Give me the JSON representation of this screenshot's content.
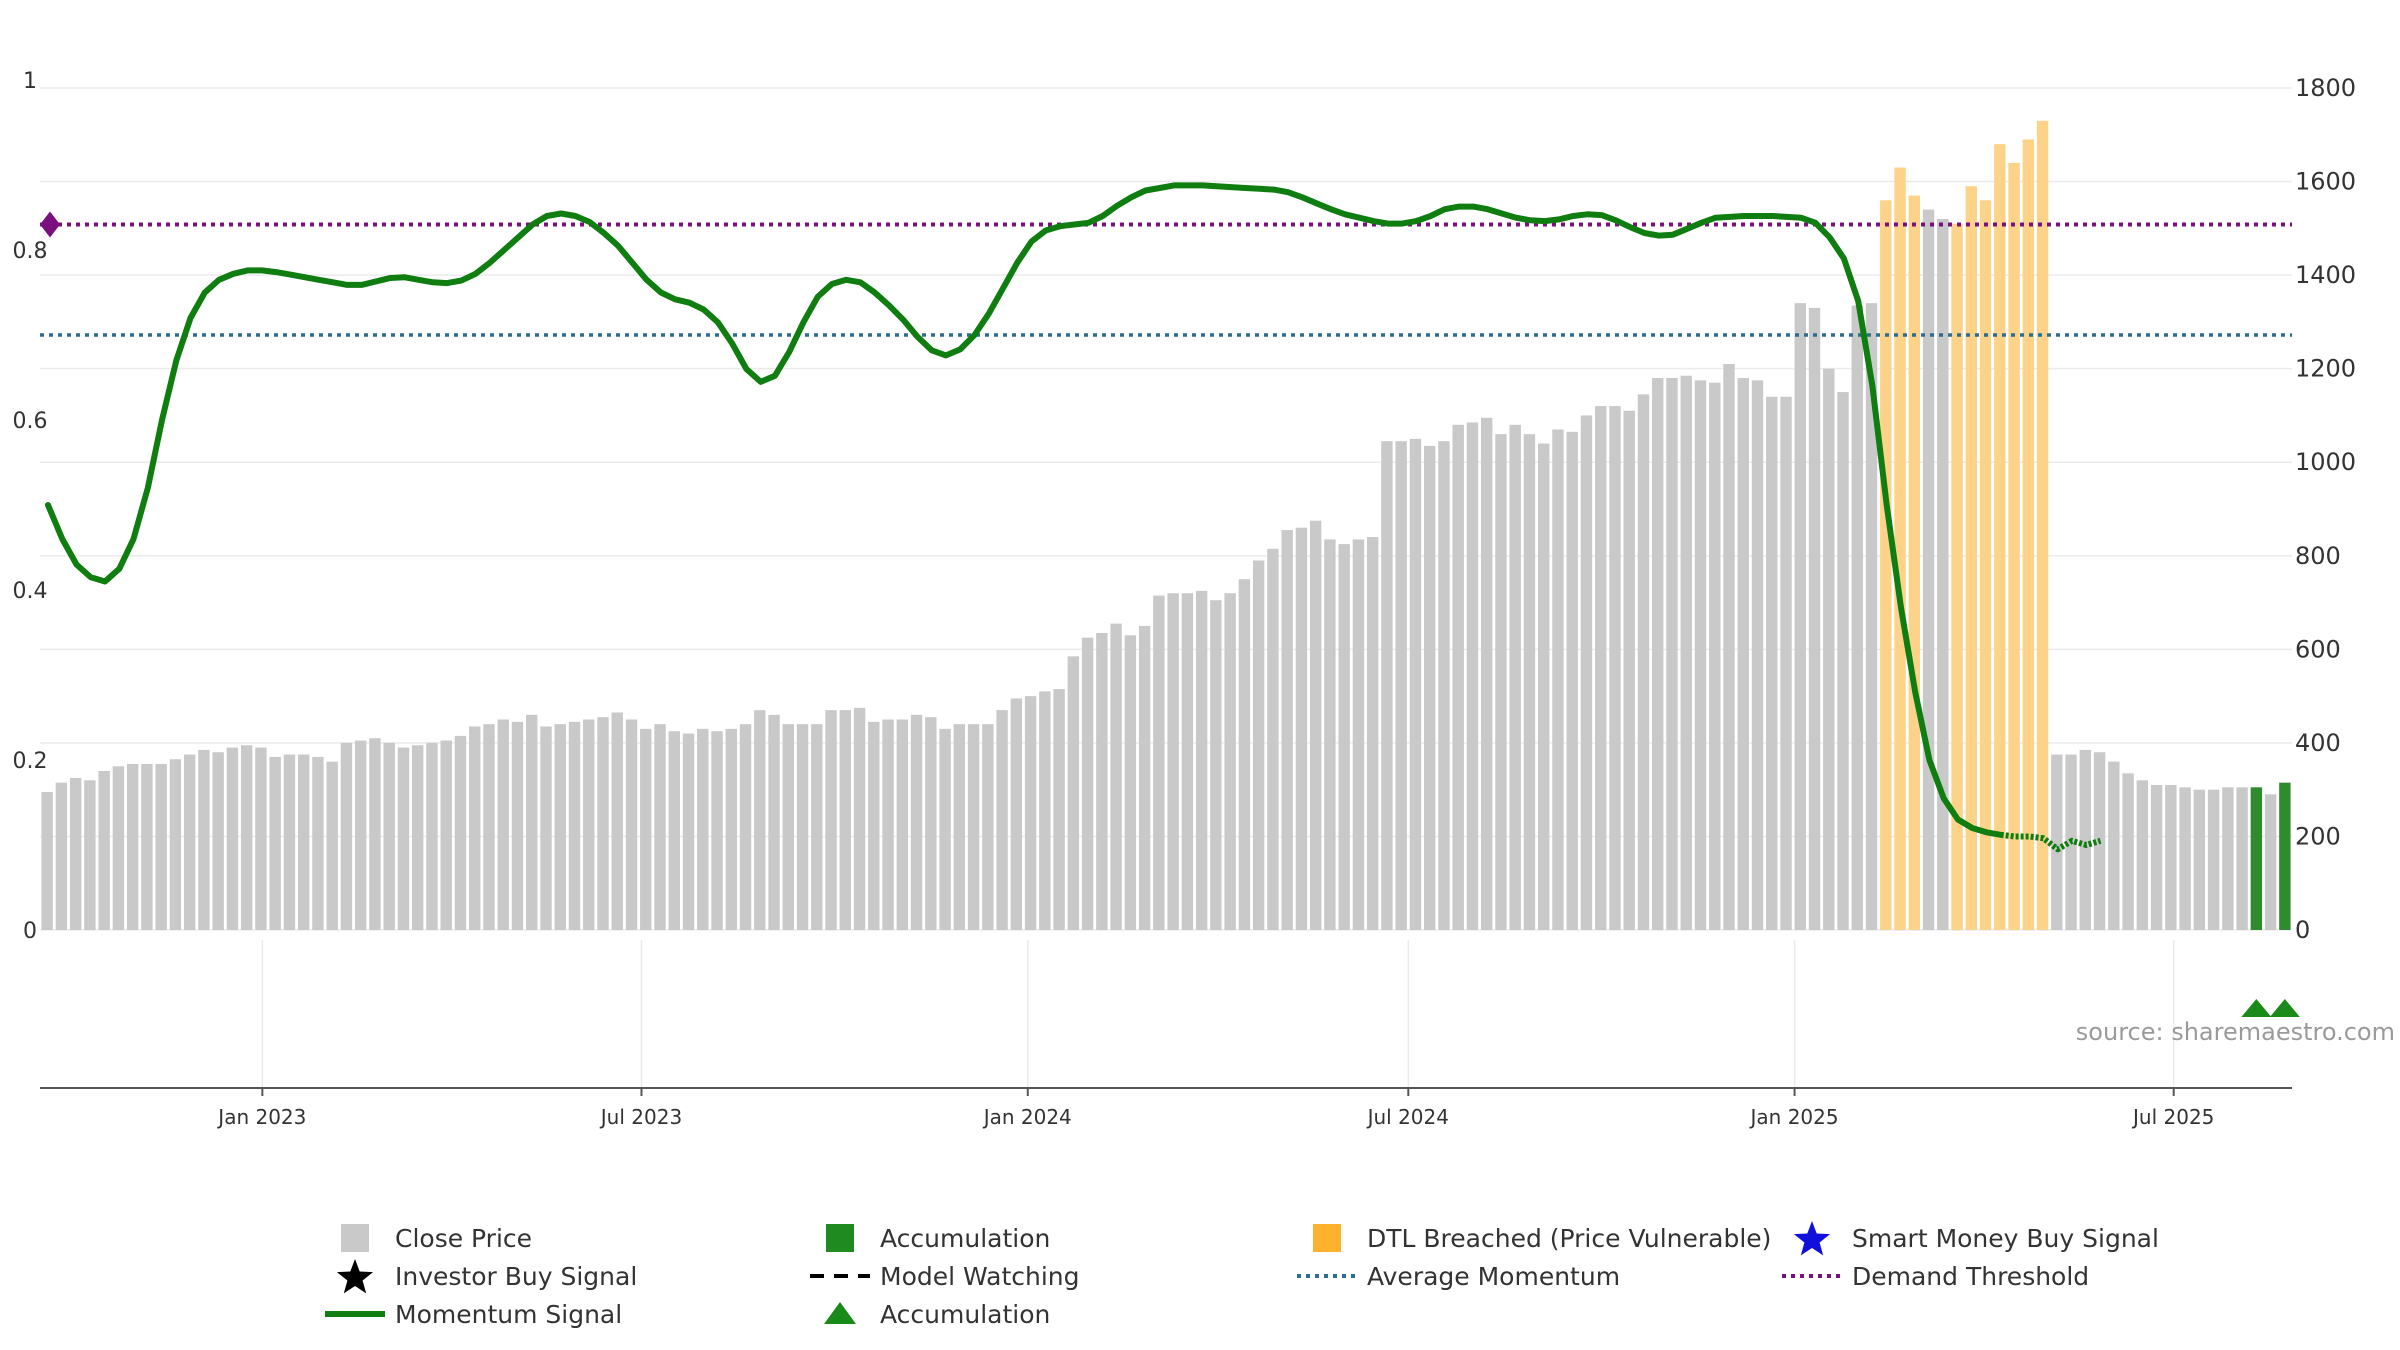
{
  "chart_data": {
    "type": "bar",
    "source_text": "source: sharemaestro.com",
    "x_ticks": [
      "Jan 2023",
      "Jul 2023",
      "Jan 2024",
      "Jul 2024",
      "Jan 2025",
      "Jul 2025"
    ],
    "x_tick_positions_week_index": [
      15.6,
      42.2,
      69.3,
      96,
      123.1,
      149.7
    ],
    "left_axis": {
      "ylim": [
        0,
        1
      ],
      "ticks": [
        0,
        0.2,
        0.4,
        0.6,
        0.8,
        1
      ],
      "tick_labels": [
        "0",
        "0.2",
        "0.4",
        "0.6",
        "0.8",
        "1"
      ]
    },
    "right_axis": {
      "ylim": [
        0,
        1800
      ],
      "ticks": [
        0,
        200,
        400,
        600,
        800,
        1000,
        1200,
        1400,
        1600,
        1800
      ],
      "tick_labels": [
        "0",
        "200",
        "400",
        "600",
        "800",
        "1000",
        "1200",
        "1400",
        "1600",
        "1800"
      ]
    },
    "demand_threshold": 0.83,
    "average_momentum": 0.7,
    "bars": {
      "values": [
        295,
        315,
        325,
        320,
        340,
        350,
        355,
        355,
        355,
        365,
        375,
        385,
        380,
        390,
        395,
        390,
        370,
        375,
        375,
        370,
        360,
        400,
        405,
        410,
        400,
        390,
        395,
        400,
        405,
        415,
        435,
        440,
        450,
        445,
        460,
        435,
        440,
        445,
        450,
        455,
        465,
        450,
        430,
        440,
        425,
        420,
        430,
        425,
        430,
        440,
        470,
        460,
        440,
        440,
        440,
        470,
        470,
        475,
        445,
        450,
        450,
        460,
        455,
        430,
        440,
        440,
        440,
        470,
        495,
        500,
        510,
        515,
        585,
        625,
        635,
        655,
        630,
        650,
        715,
        720,
        720,
        725,
        705,
        720,
        750,
        790,
        815,
        855,
        860,
        875,
        835,
        825,
        835,
        840,
        1045,
        1045,
        1050,
        1035,
        1045,
        1080,
        1085,
        1095,
        1060,
        1080,
        1060,
        1040,
        1070,
        1065,
        1100,
        1120,
        1120,
        1110,
        1145,
        1180,
        1180,
        1185,
        1175,
        1170,
        1210,
        1180,
        1175,
        1140,
        1140,
        1340,
        1330,
        1200,
        1150,
        1335,
        1340,
        1560,
        1630,
        1570,
        1540,
        1520,
        1510,
        1590,
        1560,
        1680,
        1640,
        1690,
        1730,
        375,
        375,
        385,
        380,
        360,
        335,
        320,
        310,
        310,
        305,
        300,
        300,
        305,
        305,
        305,
        290,
        315
      ],
      "highlight": [
        "g",
        "g",
        "g",
        "g",
        "g",
        "g",
        "g",
        "g",
        "g",
        "g",
        "g",
        "g",
        "g",
        "g",
        "g",
        "g",
        "g",
        "g",
        "g",
        "g",
        "g",
        "g",
        "g",
        "g",
        "g",
        "g",
        "g",
        "g",
        "g",
        "g",
        "g",
        "g",
        "g",
        "g",
        "g",
        "g",
        "g",
        "g",
        "g",
        "g",
        "g",
        "g",
        "g",
        "g",
        "g",
        "g",
        "g",
        "g",
        "g",
        "g",
        "g",
        "g",
        "g",
        "g",
        "g",
        "g",
        "g",
        "g",
        "g",
        "g",
        "g",
        "g",
        "g",
        "g",
        "g",
        "g",
        "g",
        "g",
        "g",
        "g",
        "g",
        "g",
        "g",
        "g",
        "g",
        "g",
        "g",
        "g",
        "g",
        "g",
        "g",
        "g",
        "g",
        "g",
        "g",
        "g",
        "g",
        "g",
        "g",
        "g",
        "g",
        "g",
        "g",
        "g",
        "g",
        "g",
        "g",
        "g",
        "g",
        "g",
        "g",
        "g",
        "g",
        "g",
        "g",
        "g",
        "g",
        "g",
        "g",
        "g",
        "g",
        "g",
        "g",
        "g",
        "g",
        "g",
        "g",
        "g",
        "g",
        "g",
        "g",
        "g",
        "g",
        "g",
        "g",
        "g",
        "g",
        "g",
        "g",
        "o",
        "o",
        "o",
        "g",
        "g",
        "o",
        "o",
        "o",
        "o",
        "o",
        "o",
        "o",
        "g",
        "g",
        "g",
        "g",
        "g",
        "g",
        "g",
        "g",
        "g",
        "g",
        "g",
        "g",
        "g",
        "g",
        "G",
        "g",
        "G",
        "g"
      ]
    },
    "momentum": {
      "values": [
        0.5,
        0.46,
        0.43,
        0.415,
        0.41,
        0.425,
        0.46,
        0.52,
        0.6,
        0.67,
        0.72,
        0.75,
        0.765,
        0.772,
        0.776,
        0.776,
        0.774,
        0.771,
        0.768,
        0.765,
        0.762,
        0.759,
        0.759,
        0.763,
        0.767,
        0.768,
        0.765,
        0.762,
        0.761,
        0.764,
        0.772,
        0.785,
        0.8,
        0.815,
        0.83,
        0.84,
        0.843,
        0.84,
        0.833,
        0.82,
        0.805,
        0.785,
        0.765,
        0.75,
        0.742,
        0.738,
        0.73,
        0.715,
        0.69,
        0.66,
        0.645,
        0.652,
        0.68,
        0.715,
        0.745,
        0.76,
        0.765,
        0.762,
        0.75,
        0.735,
        0.718,
        0.698,
        0.682,
        0.676,
        0.683,
        0.7,
        0.725,
        0.755,
        0.785,
        0.81,
        0.823,
        0.828,
        0.83,
        0.832,
        0.84,
        0.852,
        0.862,
        0.87,
        0.873,
        0.876,
        0.876,
        0.876,
        0.875,
        0.874,
        0.873,
        0.872,
        0.871,
        0.868,
        0.862,
        0.855,
        0.848,
        0.842,
        0.838,
        0.834,
        0.831,
        0.831,
        0.834,
        0.84,
        0.848,
        0.851,
        0.851,
        0.848,
        0.843,
        0.838,
        0.835,
        0.834,
        0.836,
        0.84,
        0.842,
        0.841,
        0.835,
        0.827,
        0.82,
        0.817,
        0.818,
        0.825,
        0.832,
        0.838,
        0.839,
        0.84,
        0.84,
        0.84,
        0.839,
        0.838,
        0.832,
        0.815,
        0.79,
        0.74,
        0.64,
        0.5,
        0.38,
        0.28,
        0.2,
        0.155,
        0.13,
        0.12,
        0.115,
        0.112,
        0.11,
        0.11,
        0.108,
        0.095,
        0.105,
        0.1,
        0.105
      ],
      "x_start_week_index": 0.5,
      "x_step": 1,
      "dashed_tail_from_index": 137
    },
    "accumulation_triangles_week_index": [
      155.5,
      157.5
    ],
    "demand_marker_week_index": 0,
    "legend": [
      {
        "label": "Close Price",
        "symbol": "gray-square"
      },
      {
        "label": "Accumulation",
        "symbol": "green-square"
      },
      {
        "label": "DTL Breached (Price Vulnerable)",
        "symbol": "orange-square"
      },
      {
        "label": "Smart Money Buy Signal",
        "symbol": "blue-star"
      },
      {
        "label": "Investor Buy Signal",
        "symbol": "black-star"
      },
      {
        "label": "Model Watching",
        "symbol": "black-dash"
      },
      {
        "label": "Average Momentum",
        "symbol": "blue-dotted"
      },
      {
        "label": "Demand Threshold",
        "symbol": "purple-dotted"
      },
      {
        "label": "Momentum Signal",
        "symbol": "green-line"
      },
      {
        "label": "Accumulation",
        "symbol": "green-triangle"
      }
    ],
    "colors": {
      "bar_gray": "#c9c9c9",
      "bar_orange": "#fdd38a",
      "bar_green": "#2e8b2e",
      "momentum": "#0f7d0f",
      "average": "#2d6e8e",
      "threshold": "#7a1080",
      "grid": "#ebebeb"
    }
  }
}
